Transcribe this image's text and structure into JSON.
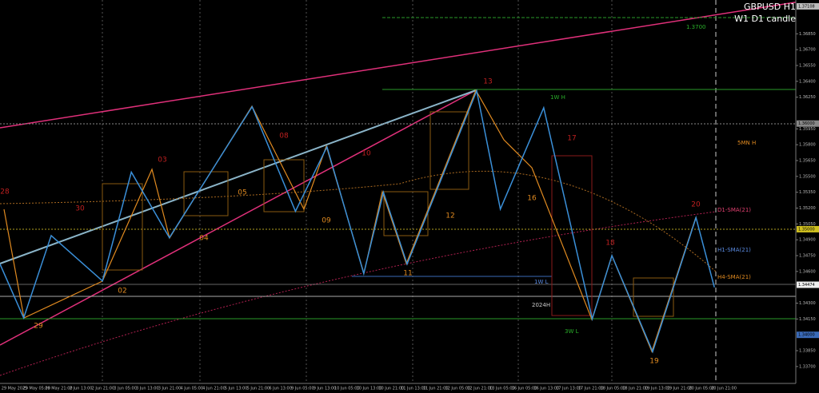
{
  "chart_data": {
    "type": "line",
    "title": "GBPUSD H1",
    "subtitle": "W1 D1 candle",
    "x": [
      -12,
      6,
      27,
      66,
      88,
      117,
      180,
      213,
      237,
      265,
      280,
      298,
      351,
      369,
      402,
      439,
      454,
      485,
      518,
      532
    ],
    "values": [
      1.3467,
      1.3416,
      1.3494,
      1.3451,
      1.3554,
      1.3492,
      1.3616,
      1.3517,
      1.3578,
      1.3458,
      1.3535,
      1.3467,
      1.3631,
      1.3519,
      1.3615,
      1.3415,
      1.3475,
      1.3384,
      1.3511,
      1.3445
    ],
    "color": "#3a8fd8",
    "xlim": [
      -12,
      594
    ],
    "ylim": [
      1.3354,
      1.3717
    ],
    "yticks": [
      {
        "value": 1.3685,
        "label": "1.36850"
      },
      {
        "value": 1.367,
        "label": "1.36700"
      },
      {
        "value": 1.3655,
        "label": "1.36550"
      },
      {
        "value": 1.364,
        "label": "1.36400"
      },
      {
        "value": 1.3625,
        "label": "1.36250"
      },
      {
        "value": 1.3595,
        "label": "1.35950"
      },
      {
        "value": 1.358,
        "label": "1.35800"
      },
      {
        "value": 1.3565,
        "label": "1.35650"
      },
      {
        "value": 1.355,
        "label": "1.35500"
      },
      {
        "value": 1.3535,
        "label": "1.35350"
      },
      {
        "value": 1.352,
        "label": "1.35200"
      },
      {
        "value": 1.3505,
        "label": "1.35050"
      },
      {
        "value": 1.349,
        "label": "1.34900"
      },
      {
        "value": 1.3475,
        "label": "1.34750"
      },
      {
        "value": 1.346,
        "label": "1.34600"
      },
      {
        "value": 1.343,
        "label": "1.34300"
      },
      {
        "value": 1.3415,
        "label": "1.34150"
      },
      {
        "value": 1.3385,
        "label": "1.33850"
      },
      {
        "value": 1.337,
        "label": "1.33700"
      }
    ],
    "price_boxes": [
      {
        "value": 1.3711,
        "label": "1.37108"
      },
      {
        "value": 1.36,
        "label": "1.36000"
      },
      {
        "value": 1.35,
        "label": "1.35000"
      },
      {
        "value": 1.34474,
        "label": "1.34474"
      },
      {
        "value": 1.34,
        "label": "1.34000"
      }
    ],
    "time_labels": [
      "29 May 2025",
      "29 May 05:00",
      "29 May 21:00",
      "2 Jun 13:00",
      "2 Jun 21:00",
      "3 Jun 05:00",
      "3 Jun 13:00",
      "3 Jun 21:00",
      "4 Jun 05:00",
      "4 Jun 21:00",
      "5 Jun 13:00",
      "5 Jun 21:00",
      "6 Jun 13:00",
      "9 Jun 05:00",
      "9 Jun 13:00",
      "10 Jun 05:00",
      "10 Jun 13:00",
      "10 Jun 21:00",
      "11 Jun 13:00",
      "11 Jun 21:00",
      "12 Jun 05:00",
      "12 Jun 21:00",
      "13 Jun 05:00",
      "16 Jun 05:00",
      "16 Jun 13:00",
      "17 Jun 13:00",
      "17 Jun 21:00",
      "18 Jun 05:00",
      "18 Jun 21:00",
      "19 Jun 13:00",
      "19 Jun 21:00",
      "20 Jun 05:00",
      "20 Jun 21:00"
    ],
    "wave_labels": [
      "28",
      "30",
      "29",
      "02",
      "03",
      "04",
      "05",
      "08",
      "09",
      "10",
      "11",
      "12",
      "13",
      "16",
      "17",
      "18",
      "19",
      "20"
    ],
    "level_labels": [
      "1W H",
      "1W L",
      "3W L",
      "2024H",
      "5MN H",
      "D1-SMA(21)",
      "H1-SMA(21)",
      "H4-SMA(21)",
      "1.3700"
    ]
  }
}
